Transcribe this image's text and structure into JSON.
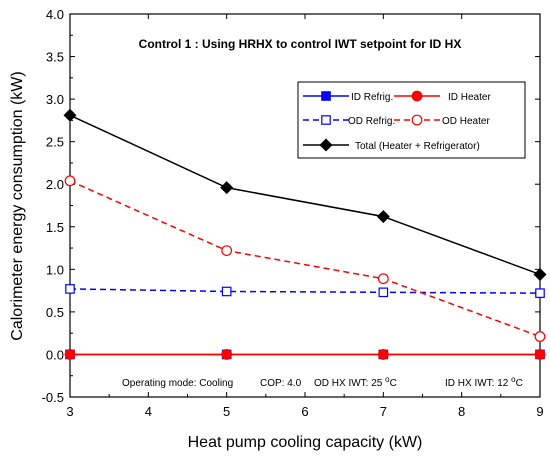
{
  "chart_data": {
    "type": "line",
    "title": "Control 1 : Using HRHX to control IWT setpoint for ID HX",
    "xlabel": "Heat pump cooling capacity (kW)",
    "ylabel": "Calorimeter energy consumption (kW)",
    "xlim": [
      3,
      9
    ],
    "ylim": [
      -0.5,
      4.0
    ],
    "xticks": [
      3,
      4,
      5,
      6,
      7,
      8,
      9
    ],
    "yticks": [
      -0.5,
      0.0,
      0.5,
      1.0,
      1.5,
      2.0,
      2.5,
      3.0,
      3.5,
      4.0
    ],
    "x": [
      3,
      5,
      7,
      9
    ],
    "grid": false,
    "legend_position": "top-right",
    "series": [
      {
        "name": "ID Refrig.",
        "values": [
          0.0,
          0.0,
          0.0,
          0.0
        ],
        "color": "#0000ff",
        "dash": "solid",
        "marker": "square-filled"
      },
      {
        "name": "ID Heater",
        "values": [
          0.0,
          0.0,
          0.0,
          0.0
        ],
        "color": "#ff0000",
        "dash": "solid",
        "marker": "circle-filled"
      },
      {
        "name": "OD Refrig.",
        "values": [
          0.77,
          0.74,
          0.73,
          0.72
        ],
        "color": "#0000ff",
        "dash": "dashed",
        "marker": "square-open"
      },
      {
        "name": "OD Heater",
        "values": [
          2.04,
          1.22,
          0.89,
          0.21
        ],
        "color": "#ff0000",
        "dash": "dashed",
        "marker": "circle-open"
      },
      {
        "name": "Total (Heater + Refrigerator)",
        "values": [
          2.81,
          1.96,
          1.62,
          0.94
        ],
        "color": "#000000",
        "dash": "solid",
        "marker": "diamond-filled"
      }
    ],
    "annotation": {
      "mode_text": "Operating mode: Cooling",
      "cop_text": "COP: 4.0",
      "od_prefix": "OD HX IWT: 25 ",
      "id_prefix": "ID HX IWT: 12 ",
      "degree_sup": "o",
      "unit": "C"
    }
  }
}
